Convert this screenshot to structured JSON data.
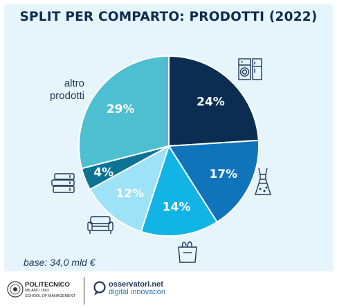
{
  "title": "SPLIT PER COMPARTO: PRODOTTI (2022)",
  "chart_data": {
    "type": "pie",
    "start_angle_deg": 0,
    "direction": "clockwise",
    "slices": [
      {
        "value": 24,
        "label": "24%",
        "color": "#0b2d52",
        "icon": "appliances-icon"
      },
      {
        "value": 17,
        "label": "17%",
        "color": "#0f74b9",
        "icon": "dress-icon"
      },
      {
        "value": 14,
        "label": "14%",
        "color": "#12b4e5",
        "icon": "grocery-bag-icon"
      },
      {
        "value": 12,
        "label": "12%",
        "color": "#9ee2f7",
        "icon": "armchair-icon"
      },
      {
        "value": 4,
        "label": "4%",
        "color": "#0b7394",
        "icon": "books-icon"
      },
      {
        "value": 29,
        "label": "29%",
        "color": "#4ebfd1",
        "icon": ""
      }
    ],
    "outside_label": [
      "altro",
      "prodotti"
    ]
  },
  "note": "base: 34,0 mld €",
  "footer": {
    "polimi_line1": "POLITECNICO",
    "polimi_line2": "MILANO 1863",
    "polimi_line3": "SCHOOL OF MANAGEMENT",
    "osservatori_line1": "osservatori.net",
    "osservatori_line2": "digital innovation"
  }
}
